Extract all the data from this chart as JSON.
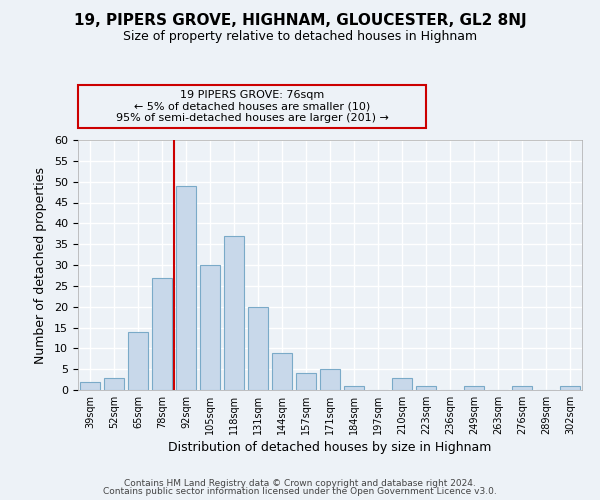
{
  "title": "19, PIPERS GROVE, HIGHNAM, GLOUCESTER, GL2 8NJ",
  "subtitle": "Size of property relative to detached houses in Highnam",
  "xlabel": "Distribution of detached houses by size in Highnam",
  "ylabel": "Number of detached properties",
  "bar_color": "#c8d8ea",
  "bar_edge_color": "#7aaac8",
  "categories": [
    "39sqm",
    "52sqm",
    "65sqm",
    "78sqm",
    "92sqm",
    "105sqm",
    "118sqm",
    "131sqm",
    "144sqm",
    "157sqm",
    "171sqm",
    "184sqm",
    "197sqm",
    "210sqm",
    "223sqm",
    "236sqm",
    "249sqm",
    "263sqm",
    "276sqm",
    "289sqm",
    "302sqm"
  ],
  "values": [
    2,
    3,
    14,
    27,
    49,
    30,
    37,
    20,
    9,
    4,
    5,
    1,
    0,
    3,
    1,
    0,
    1,
    0,
    1,
    0,
    1
  ],
  "ylim": [
    0,
    60
  ],
  "yticks": [
    0,
    5,
    10,
    15,
    20,
    25,
    30,
    35,
    40,
    45,
    50,
    55,
    60
  ],
  "vline_x": 3.5,
  "vline_color": "#cc0000",
  "annotation_title": "19 PIPERS GROVE: 76sqm",
  "annotation_line1": "← 5% of detached houses are smaller (10)",
  "annotation_line2": "95% of semi-detached houses are larger (201) →",
  "annotation_box_color": "#cc0000",
  "footer_line1": "Contains HM Land Registry data © Crown copyright and database right 2024.",
  "footer_line2": "Contains public sector information licensed under the Open Government Licence v3.0.",
  "background_color": "#edf2f7",
  "grid_color": "#ffffff"
}
